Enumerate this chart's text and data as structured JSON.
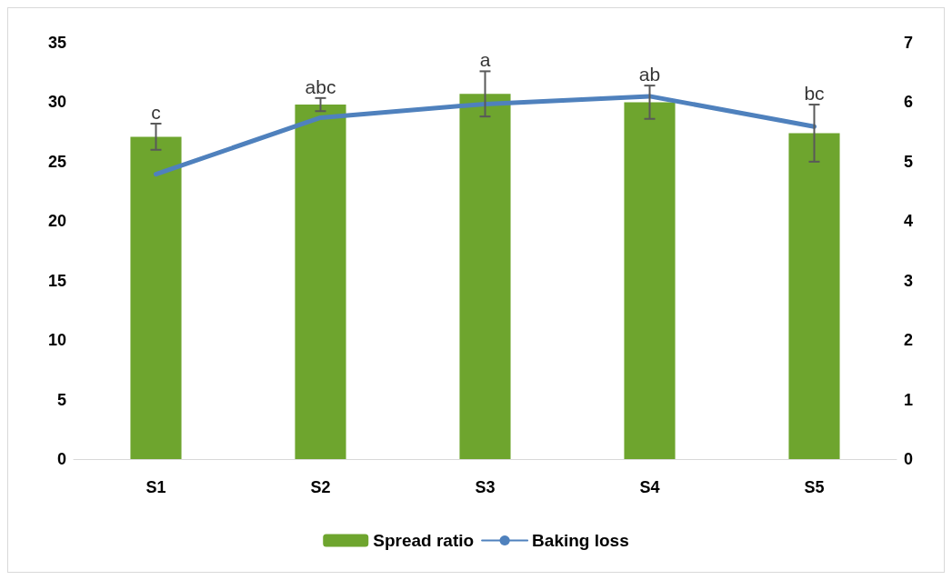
{
  "chart_data": {
    "type": "bar",
    "categories": [
      "S1",
      "S2",
      "S3",
      "S4",
      "S5"
    ],
    "series": [
      {
        "name": "Spread ratio",
        "type": "bar",
        "color": "#6ea52e",
        "values": [
          27.1,
          29.8,
          30.7,
          30.0,
          27.4
        ],
        "errors": [
          1.1,
          0.55,
          1.9,
          1.4,
          2.4
        ]
      },
      {
        "name": "Baking loss",
        "type": "line",
        "axis": "y2",
        "color": "#4f81bd",
        "values": [
          4.79,
          5.74,
          5.97,
          6.1,
          5.59
        ]
      }
    ],
    "ylim": [
      0,
      35
    ],
    "yticks": [
      0,
      5,
      10,
      15,
      20,
      25,
      30,
      35
    ],
    "y2lim": [
      0,
      7
    ],
    "y2ticks": [
      0,
      1,
      2,
      3,
      4,
      5,
      6,
      7
    ],
    "annotations": [
      "c",
      "abc",
      "a",
      "ab",
      "bc"
    ],
    "legend": "bottom",
    "grid": false,
    "marker": "none"
  }
}
